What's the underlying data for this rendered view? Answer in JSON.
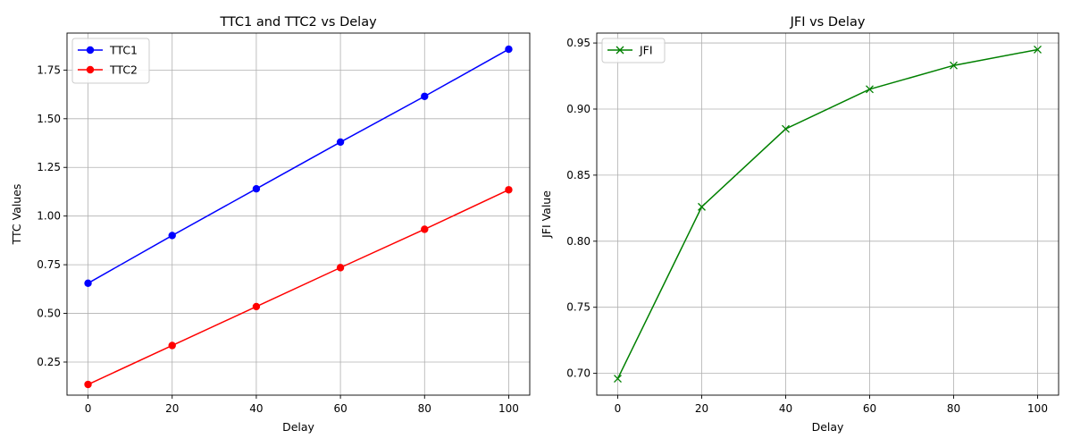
{
  "chart_data": [
    {
      "type": "line",
      "title": "TTC1 and TTC2 vs Delay",
      "xlabel": "Delay",
      "ylabel": "TTC Values",
      "x": [
        0,
        20,
        40,
        60,
        80,
        100
      ],
      "xlim": [
        -5,
        105
      ],
      "ylim": [
        0.08,
        1.94
      ],
      "xticks": [
        0,
        20,
        40,
        60,
        80,
        100
      ],
      "yticks": [
        0.25,
        0.5,
        0.75,
        1.0,
        1.25,
        1.5,
        1.75
      ],
      "ytick_labels": [
        "0.25",
        "0.50",
        "0.75",
        "1.00",
        "1.25",
        "1.50",
        "1.75"
      ],
      "grid": true,
      "legend": "top-left",
      "series": [
        {
          "name": "TTC1",
          "color": "#0000ff",
          "marker": "circle",
          "values": [
            0.655,
            0.9,
            1.14,
            1.38,
            1.615,
            1.857
          ]
        },
        {
          "name": "TTC2",
          "color": "#ff0000",
          "marker": "circle",
          "values": [
            0.135,
            0.335,
            0.535,
            0.735,
            0.932,
            1.135
          ]
        }
      ]
    },
    {
      "type": "line",
      "title": "JFI vs Delay",
      "xlabel": "Delay",
      "ylabel": "JFI Value",
      "x": [
        0,
        20,
        40,
        60,
        80,
        100
      ],
      "xlim": [
        -5,
        105
      ],
      "ylim": [
        0.6835,
        0.9575
      ],
      "xticks": [
        0,
        20,
        40,
        60,
        80,
        100
      ],
      "yticks": [
        0.7,
        0.75,
        0.8,
        0.85,
        0.9,
        0.95
      ],
      "ytick_labels": [
        "0.70",
        "0.75",
        "0.80",
        "0.85",
        "0.90",
        "0.95"
      ],
      "grid": true,
      "legend": "top-left",
      "series": [
        {
          "name": "JFI",
          "color": "#008000",
          "marker": "x",
          "values": [
            0.696,
            0.826,
            0.885,
            0.915,
            0.933,
            0.945
          ]
        }
      ]
    }
  ]
}
